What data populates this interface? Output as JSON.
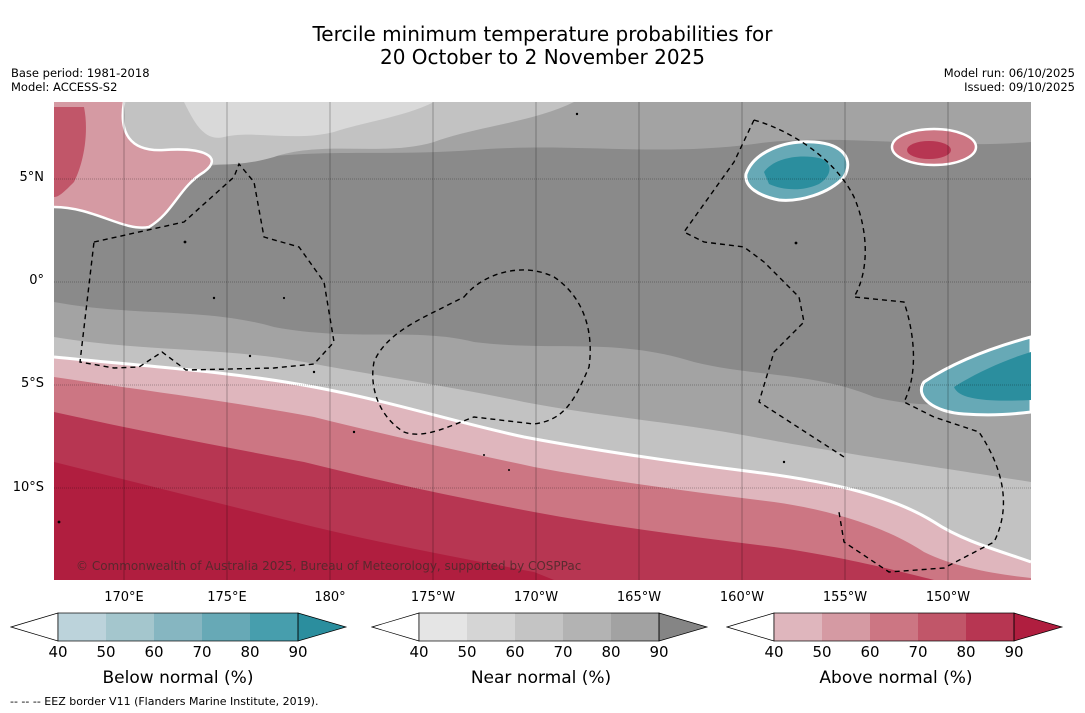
{
  "title": {
    "line1": "Tercile minimum temperature probabilities for",
    "line2": "20 October to 2 November 2025"
  },
  "meta_left": {
    "base_period": "Base period: 1981-2018",
    "model": "Model: ACCESS-S2"
  },
  "meta_right": {
    "model_run": "Model run: 06/10/2025",
    "issued": "Issued: 09/10/2025"
  },
  "map": {
    "lat_labels": [
      "5°N",
      "0°",
      "5°S",
      "10°S"
    ],
    "lon_labels": [
      "170°E",
      "175°E",
      "180°",
      "175°W",
      "170°W",
      "165°W",
      "160°W",
      "155°W",
      "150°W"
    ],
    "credit": "© Commonwealth of Australia 2025, Bureau of Meteorology, supported by COSPPac"
  },
  "colorbars": [
    {
      "title": "Below normal (%)",
      "ticks": [
        "40",
        "50",
        "60",
        "70",
        "80",
        "90"
      ],
      "colors": [
        "#ffffff",
        "#bcd3db",
        "#a4c6cd",
        "#86b6c1",
        "#67a9b6",
        "#479ead",
        "#2b8e9e"
      ]
    },
    {
      "title": "Near normal (%)",
      "ticks": [
        "40",
        "50",
        "60",
        "70",
        "80",
        "90"
      ],
      "colors": [
        "#ffffff",
        "#e5e5e5",
        "#d5d5d5",
        "#c4c4c4",
        "#b3b3b3",
        "#a2a2a2",
        "#858585"
      ]
    },
    {
      "title": "Above normal (%)",
      "ticks": [
        "40",
        "50",
        "60",
        "70",
        "80",
        "90"
      ],
      "colors": [
        "#ffffff",
        "#dfb6bd",
        "#d59aa3",
        "#cc7683",
        "#c15669",
        "#b73652",
        "#b01e3f"
      ]
    }
  ],
  "footnote": "--  --  -- EEZ border V11 (Flanders Marine Institute, 2019)."
}
